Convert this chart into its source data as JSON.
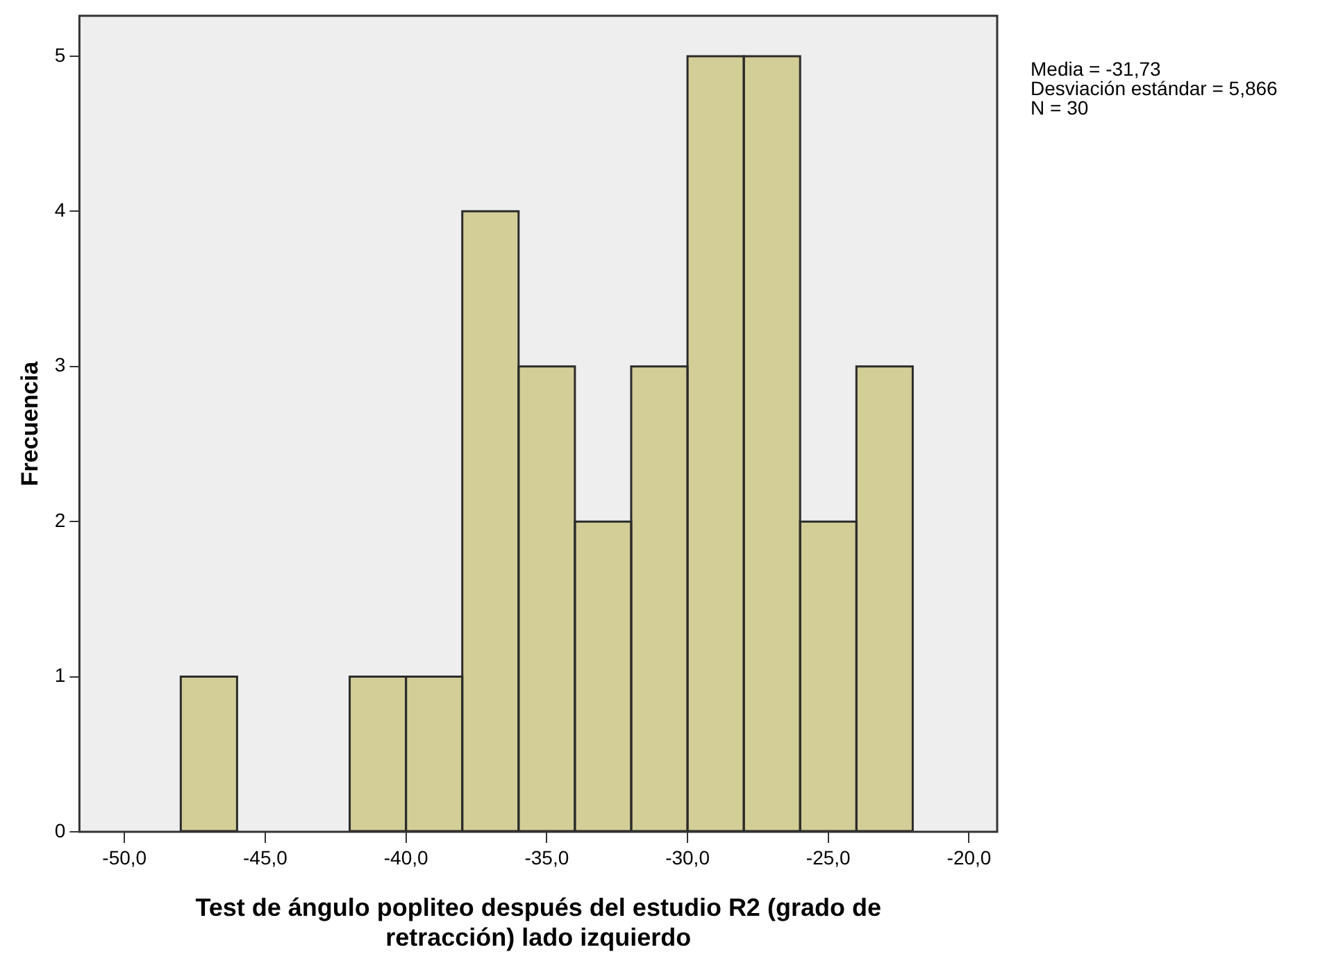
{
  "chart_data": {
    "type": "histogram",
    "xlabel": "Test de ángulo popliteo después del estudio R2 (grado de retracción) lado izquierdo",
    "ylabel": "Frecuencia",
    "bins": [
      -48,
      -46,
      -44,
      -42,
      -40,
      -38,
      -36,
      -34,
      -32,
      -30,
      -28,
      -26,
      -24,
      -22
    ],
    "values": [
      1,
      0,
      0,
      1,
      1,
      4,
      3,
      2,
      3,
      5,
      5,
      2,
      3
    ],
    "color": "#d3ce97",
    "xlim": [
      -51.6,
      -19
    ],
    "xticks": [
      {
        "value": -50,
        "label": "-50,0"
      },
      {
        "value": -45,
        "label": "-45,0"
      },
      {
        "value": -40,
        "label": "-40,0"
      },
      {
        "value": -35,
        "label": "-35,0"
      },
      {
        "value": -30,
        "label": "-30,0"
      },
      {
        "value": -25,
        "label": "-25,0"
      },
      {
        "value": -20,
        "label": "-20,0"
      }
    ],
    "ylim": [
      0,
      5.26
    ],
    "yticks": [
      0,
      1,
      2,
      3,
      4,
      5
    ],
    "annotations": [
      "Media = -31,73",
      "Desviación estándar = 5,866",
      "N = 30"
    ],
    "grid": false,
    "legend": false
  }
}
